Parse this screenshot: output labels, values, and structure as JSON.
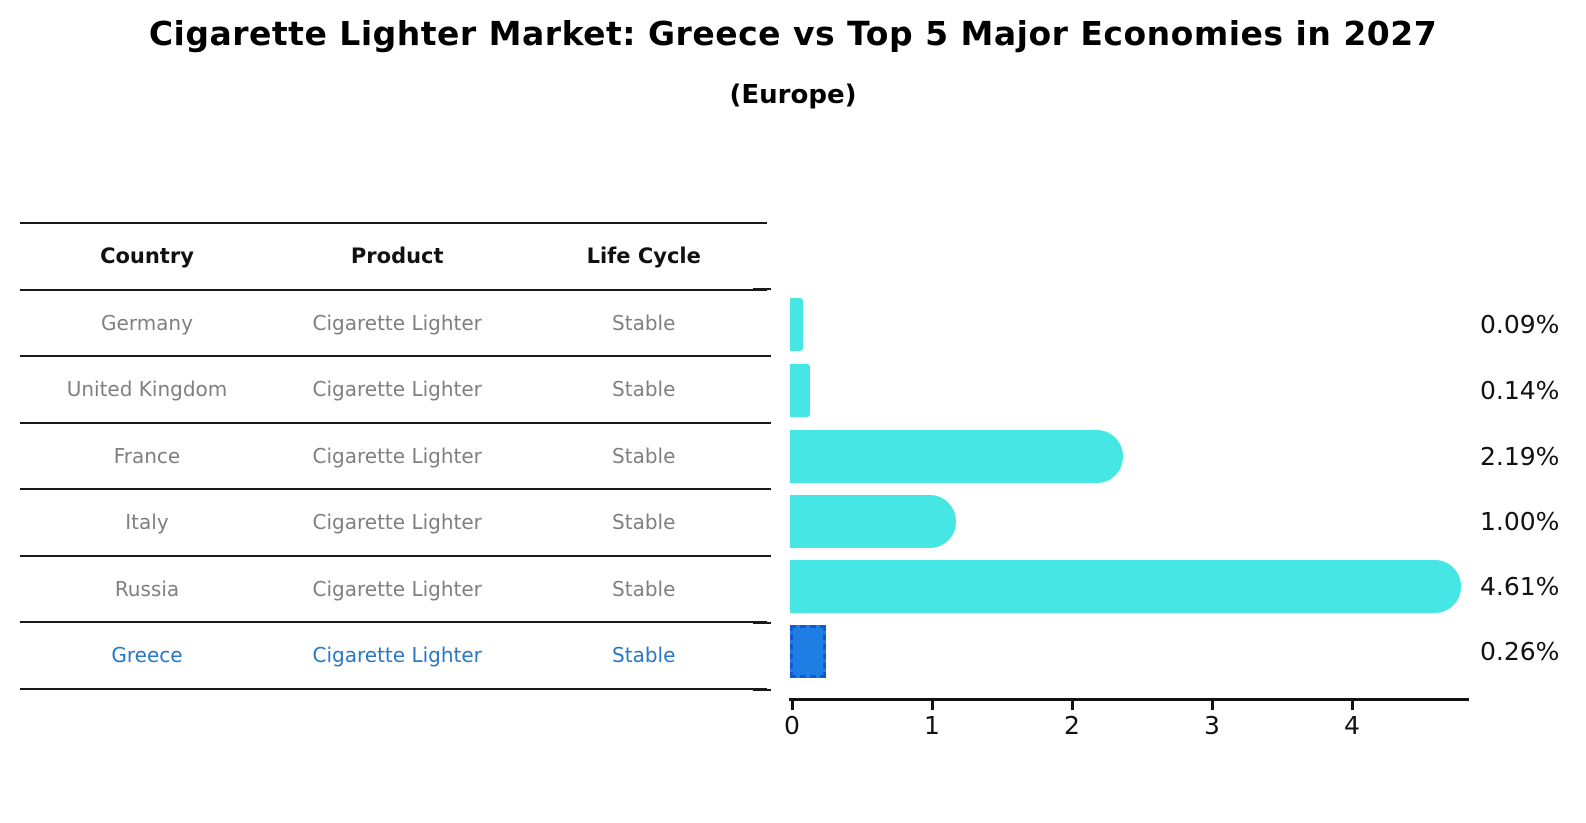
{
  "title": "Cigarette Lighter Market: Greece vs Top 5 Major Economies in 2027",
  "subtitle": "(Europe)",
  "table": {
    "headers": [
      "Country",
      "Product",
      "Life Cycle"
    ],
    "rows": [
      {
        "country": "Germany",
        "product": "Cigarette Lighter",
        "life_cycle": "Stable",
        "highlight": false
      },
      {
        "country": "United Kingdom",
        "product": "Cigarette Lighter",
        "life_cycle": "Stable",
        "highlight": false
      },
      {
        "country": "France",
        "product": "Cigarette Lighter",
        "life_cycle": "Stable",
        "highlight": false
      },
      {
        "country": "Italy",
        "product": "Cigarette Lighter",
        "life_cycle": "Stable",
        "highlight": false
      },
      {
        "country": "Russia",
        "product": "Cigarette Lighter",
        "life_cycle": "Stable",
        "highlight": false
      },
      {
        "country": "Greece",
        "product": "Cigarette Lighter",
        "life_cycle": "Stable",
        "highlight": true
      }
    ]
  },
  "chart_data": {
    "type": "bar",
    "orientation": "horizontal",
    "title": "Cigarette Lighter Market: Greece vs Top 5 Major Economies in 2027 (Europe)",
    "categories": [
      "Germany",
      "United Kingdom",
      "France",
      "Italy",
      "Russia",
      "Greece"
    ],
    "values": [
      0.09,
      0.14,
      2.19,
      1.0,
      4.61,
      0.26
    ],
    "labels": [
      "0.09%",
      "0.14%",
      "2.19%",
      "1.00%",
      "4.61%",
      "0.26%"
    ],
    "xticks": [
      0,
      1,
      2,
      3,
      4
    ],
    "xlim": [
      0,
      4.85
    ],
    "grid": false,
    "legend": "none",
    "highlight_index": 5
  },
  "colors": {
    "bar": "#45E6E3",
    "highlight_bar": "#1E7EE4",
    "highlight_border": "#1358D0",
    "highlight_text": "#2878C8",
    "row_text": "#808080",
    "axis": "#111111"
  }
}
